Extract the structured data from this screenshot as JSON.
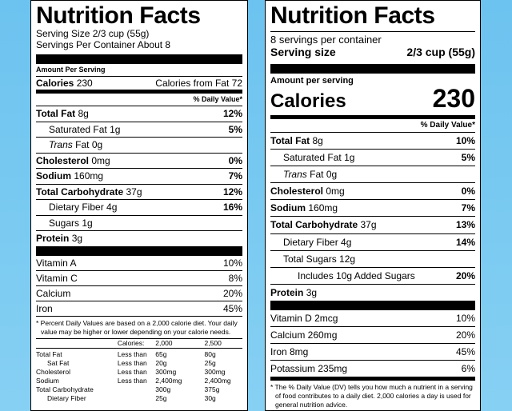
{
  "old_label": {
    "title": "Nutrition Facts",
    "serving_size": "Serving Size 2/3 cup (55g)",
    "servings_per_container": "Servings Per Container About 8",
    "amount_per_serving": "Amount Per Serving",
    "calories_label": "Calories",
    "calories_value": "230",
    "calories_from_fat": "Calories from Fat 72",
    "daily_value_header": "% Daily Value*",
    "nutrients": [
      {
        "name": "Total Fat",
        "amount": "8g",
        "dv": "12%"
      },
      {
        "name": "Saturated Fat",
        "amount": "1g",
        "dv": "5%"
      },
      {
        "name": "Trans",
        "amount": "Fat 0g",
        "dv": ""
      },
      {
        "name": "Cholesterol",
        "amount": "0mg",
        "dv": "0%"
      },
      {
        "name": "Sodium",
        "amount": "160mg",
        "dv": "7%"
      },
      {
        "name": "Total Carbohydrate",
        "amount": "37g",
        "dv": "12%"
      },
      {
        "name": "Dietary Fiber",
        "amount": "4g",
        "dv": "16%"
      },
      {
        "name": "Sugars",
        "amount": "1g",
        "dv": ""
      },
      {
        "name": "Protein",
        "amount": "3g",
        "dv": ""
      }
    ],
    "vitamins": [
      {
        "name": "Vitamin A",
        "dv": "10%"
      },
      {
        "name": "Vitamin C",
        "dv": "8%"
      },
      {
        "name": "Calcium",
        "dv": "20%"
      },
      {
        "name": "Iron",
        "dv": "45%"
      }
    ],
    "footnote": "* Percent Daily Values are based on a 2,000 calorie diet. Your daily value may be higher or lower depending on your calorie needs.",
    "table": {
      "header": [
        "",
        "Calories:",
        "2,000",
        "2,500"
      ],
      "rows": [
        [
          "Total Fat",
          "Less than",
          "65g",
          "80g"
        ],
        [
          "Sat Fat",
          "Less than",
          "20g",
          "25g"
        ],
        [
          "Cholesterol",
          "Less than",
          "300mg",
          "300mg"
        ],
        [
          "Sodium",
          "Less than",
          "2,400mg",
          "2,400mg"
        ],
        [
          "Total Carbohydrate",
          "",
          "300g",
          "375g"
        ],
        [
          "Dietary Fiber",
          "",
          "25g",
          "30g"
        ]
      ]
    }
  },
  "new_label": {
    "title": "Nutrition Facts",
    "servings_per_container": "8 servings per container",
    "serving_size_label": "Serving size",
    "serving_size_value": "2/3 cup (55g)",
    "amount_per_serving": "Amount per serving",
    "calories_label": "Calories",
    "calories_value": "230",
    "daily_value_header": "% Daily Value*",
    "nutrients": [
      {
        "name": "Total Fat",
        "amount": "8g",
        "dv": "10%"
      },
      {
        "name": "Saturated Fat",
        "amount": "1g",
        "dv": "5%"
      },
      {
        "name": "Trans",
        "amount": "Fat 0g",
        "dv": ""
      },
      {
        "name": "Cholesterol",
        "amount": "0mg",
        "dv": "0%"
      },
      {
        "name": "Sodium",
        "amount": "160mg",
        "dv": "7%"
      },
      {
        "name": "Total Carbohydrate",
        "amount": "37g",
        "dv": "13%"
      },
      {
        "name": "Dietary Fiber",
        "amount": "4g",
        "dv": "14%"
      },
      {
        "name": "Total Sugars",
        "amount": "12g",
        "dv": ""
      },
      {
        "name": "Includes 10g Added Sugars",
        "amount": "",
        "dv": "20%"
      },
      {
        "name": "Protein",
        "amount": "3g",
        "dv": ""
      }
    ],
    "vitamins": [
      {
        "name": "Vitamin D 2mcg",
        "dv": "10%"
      },
      {
        "name": "Calcium 260mg",
        "dv": "20%"
      },
      {
        "name": "Iron 8mg",
        "dv": "45%"
      },
      {
        "name": "Potassium 235mg",
        "dv": "6%"
      }
    ],
    "footnote": "* The % Daily Value (DV) tells you how much a nutrient in a serving of food contributes to a daily diet. 2,000 calories a day is used for general nutrition advice."
  },
  "colors": {
    "background": "#6cc3ef",
    "label_bg": "#ffffff",
    "ink": "#000000"
  }
}
